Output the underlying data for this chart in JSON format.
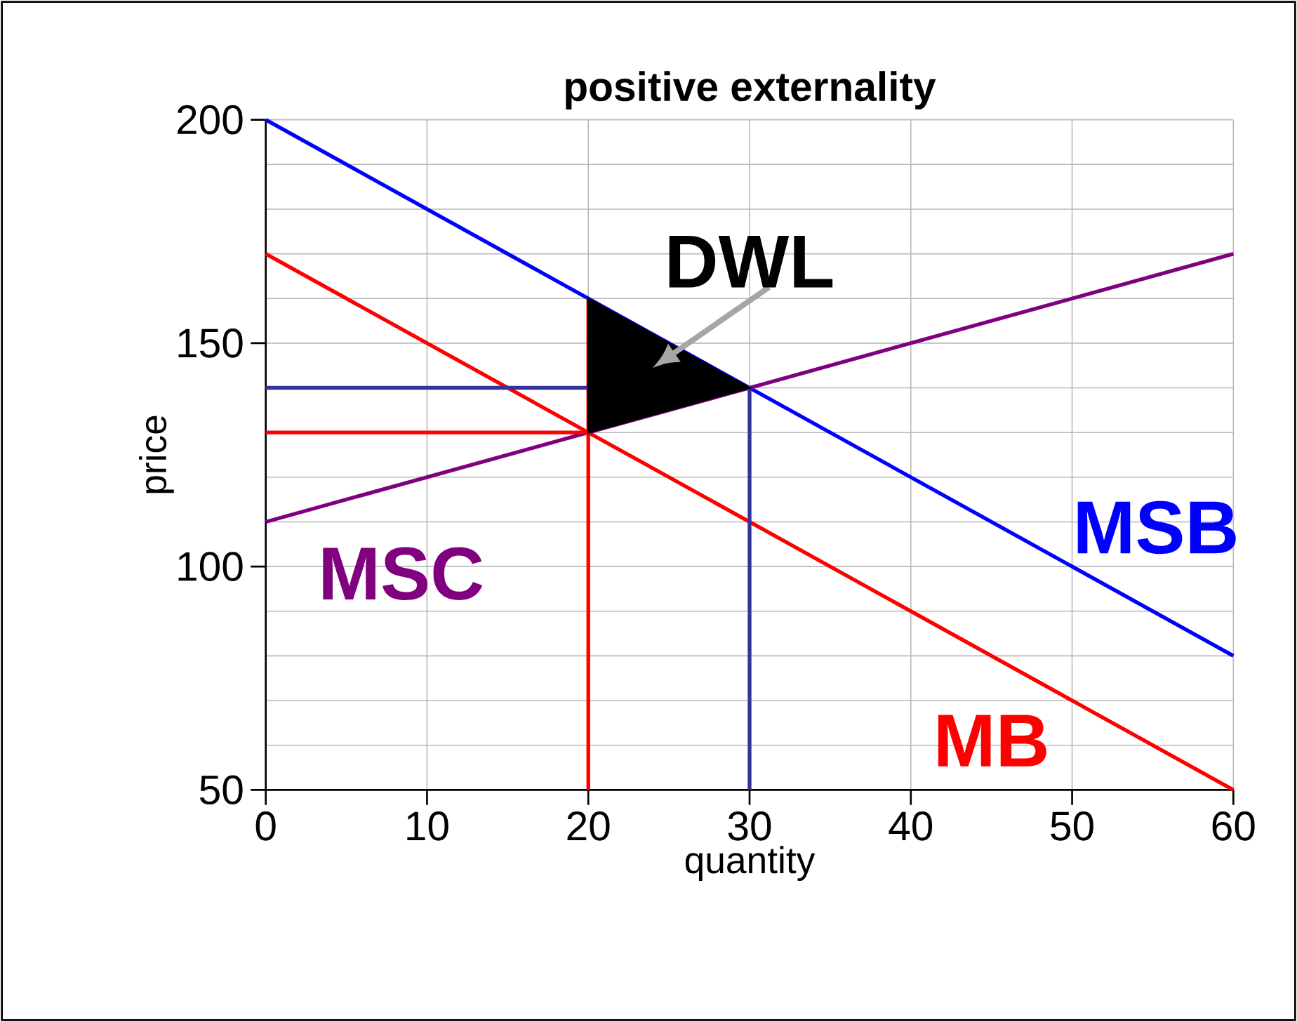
{
  "chart_data": {
    "type": "line",
    "title": "positive externality",
    "xlabel": "quantity",
    "ylabel": "price",
    "xlim": [
      0,
      60
    ],
    "ylim": [
      50,
      200
    ],
    "xticks": [
      0,
      10,
      20,
      30,
      40,
      50,
      60
    ],
    "yticks": [
      50,
      100,
      150,
      200
    ],
    "grid": true,
    "series": [
      {
        "name": "MSB",
        "color": "#0000ff",
        "x": [
          0,
          60
        ],
        "values": [
          200,
          80
        ]
      },
      {
        "name": "MB",
        "color": "#ff0000",
        "x": [
          0,
          60
        ],
        "values": [
          170,
          50
        ]
      },
      {
        "name": "MSC",
        "color": "#800080",
        "x": [
          0,
          60
        ],
        "values": [
          110,
          170
        ]
      },
      {
        "color": "#ff0000",
        "x": [
          20,
          20
        ],
        "values": [
          50,
          160
        ]
      },
      {
        "color": "#ff0000",
        "x": [
          0,
          20
        ],
        "values": [
          130,
          130
        ]
      },
      {
        "color": "#333399",
        "x": [
          30,
          30
        ],
        "values": [
          50,
          140
        ]
      },
      {
        "color": "#333399",
        "x": [
          0,
          30
        ],
        "values": [
          140,
          140
        ]
      },
      {
        "type": "area",
        "color": "#000000",
        "x": [
          20,
          20,
          30
        ],
        "values": [
          130,
          160,
          140
        ]
      }
    ],
    "annotations": [
      "DWL"
    ]
  }
}
